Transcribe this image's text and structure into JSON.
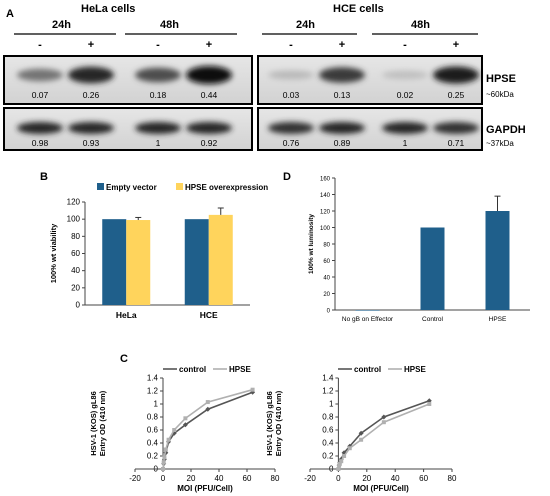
{
  "panel_labels": {
    "a": "A",
    "b": "B",
    "c": "C",
    "d": "D"
  },
  "blot": {
    "groups": [
      {
        "name": "HeLa cells",
        "times": [
          "24h",
          "48h"
        ]
      },
      {
        "name": "HCE cells",
        "times": [
          "24h",
          "48h"
        ]
      }
    ],
    "signs": [
      "-",
      "+",
      "-",
      "+",
      "-",
      "+",
      "-",
      "+"
    ],
    "hpse_values": [
      "0.07",
      "0.26",
      "0.18",
      "0.44",
      "0.03",
      "0.13",
      "0.02",
      "0.25"
    ],
    "gapdh_values": [
      "0.98",
      "0.93",
      "1",
      "0.92",
      "0.76",
      "0.89",
      "1",
      "0.71"
    ],
    "hpse_label": "HPSE",
    "hpse_size": "~60kDa",
    "gapdh_label": "GAPDH",
    "gapdh_size": "~37kDa",
    "hpse_intensity": [
      0.45,
      0.85,
      0.65,
      1.0,
      0.08,
      0.75,
      0.05,
      0.9
    ],
    "gapdh_intensity": [
      0.85,
      0.85,
      0.85,
      0.85,
      0.8,
      0.85,
      0.85,
      0.8
    ]
  },
  "chart_data": [
    {
      "id": "B",
      "type": "bar",
      "categories": [
        "HeLa",
        "HCE"
      ],
      "series": [
        {
          "name": "Empty vector",
          "values": [
            100,
            100
          ],
          "errors": [
            0,
            0
          ],
          "color": "#1f5f8b"
        },
        {
          "name": "HPSE overexpression",
          "values": [
            99,
            105
          ],
          "errors": [
            3,
            8
          ],
          "color": "#ffd45c"
        }
      ],
      "ylabel": "100% wt viability",
      "ylim": [
        0,
        120
      ],
      "yticks": [
        "0",
        "20",
        "40",
        "60",
        "80",
        "100",
        "120"
      ],
      "legend": "top"
    },
    {
      "id": "D",
      "type": "bar",
      "categories": [
        "No gB on Effector",
        "Control",
        "HPSE"
      ],
      "values": [
        0,
        100,
        120
      ],
      "errors": [
        0,
        0,
        18
      ],
      "color": "#1f5f8b",
      "ylabel": "100% wt luminosity",
      "ylim": [
        0,
        160
      ],
      "yticks": [
        "0",
        "20",
        "40",
        "60",
        "80",
        "100",
        "120",
        "140",
        "160"
      ]
    },
    {
      "id": "C1",
      "type": "line",
      "x": [
        0,
        0.5,
        1,
        2,
        4,
        8,
        16,
        32,
        64
      ],
      "series": [
        {
          "name": "control",
          "values": [
            0,
            0.08,
            0.15,
            0.25,
            0.42,
            0.55,
            0.68,
            0.92,
            1.18
          ],
          "color": "#555555"
        },
        {
          "name": "HPSE",
          "values": [
            0,
            0.1,
            0.18,
            0.3,
            0.45,
            0.6,
            0.78,
            1.03,
            1.22
          ],
          "color": "#b0b0b0"
        }
      ],
      "xlabel": "MOI (PFU/Cell)",
      "ylabel": "HSV-1 (KOS) gL86 Entry OD (410 nm)",
      "xlim": [
        -20,
        80
      ],
      "ylim": [
        0,
        1.4
      ],
      "xticks": [
        "-20",
        "0",
        "20",
        "40",
        "60",
        "80"
      ],
      "yticks": [
        "0",
        "0.2",
        "0.4",
        "0.6",
        "0.8",
        "1",
        "1.2",
        "1.4"
      ],
      "legend": "top"
    },
    {
      "id": "C2",
      "type": "line",
      "x": [
        0,
        0.5,
        1,
        2,
        4,
        8,
        16,
        32,
        64
      ],
      "series": [
        {
          "name": "control",
          "values": [
            0,
            0.06,
            0.1,
            0.15,
            0.25,
            0.35,
            0.55,
            0.8,
            1.05
          ],
          "color": "#555555"
        },
        {
          "name": "HPSE",
          "values": [
            0,
            0.05,
            0.08,
            0.12,
            0.2,
            0.32,
            0.45,
            0.72,
            1.0
          ],
          "color": "#b0b0b0"
        }
      ],
      "xlabel": "MOI (PFU/Cell)",
      "ylabel": "HSV-1 (KOS) gL86 Entry OD (410 nm)",
      "xlim": [
        -20,
        80
      ],
      "ylim": [
        0,
        1.4
      ],
      "xticks": [
        "-20",
        "0",
        "20",
        "40",
        "60",
        "80"
      ],
      "yticks": [
        "0",
        "0.2",
        "0.4",
        "0.6",
        "0.8",
        "1",
        "1.2",
        "1.4"
      ],
      "legend": "top"
    }
  ]
}
